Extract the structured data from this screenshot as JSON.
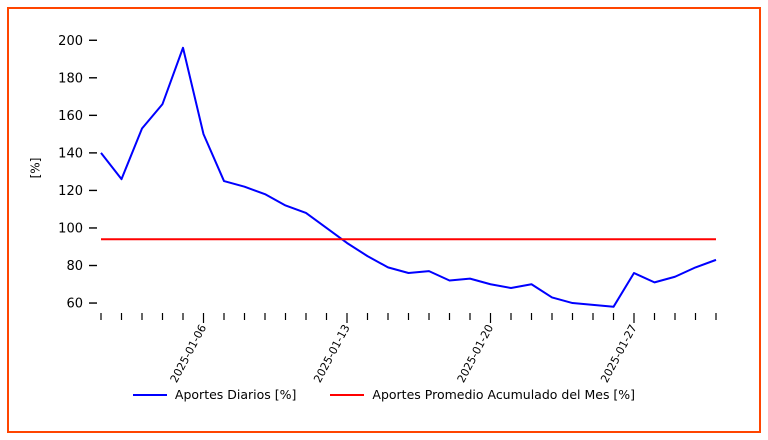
{
  "frame": {
    "border_color": "#ff4500",
    "background": "#ffffff"
  },
  "chart_data": {
    "type": "line",
    "title": "",
    "xlabel": "",
    "ylabel": "[%]",
    "ylim": [
      51.5,
      206
    ],
    "yticks": [
      60,
      80,
      100,
      120,
      140,
      160,
      180,
      200
    ],
    "xtick_labels": [
      "2025-01-06",
      "2025-01-13",
      "2025-01-20",
      "2025-01-27"
    ],
    "grid": false,
    "legend_position": "bottom",
    "x": [
      "2025-01-01",
      "2025-01-02",
      "2025-01-03",
      "2025-01-04",
      "2025-01-05",
      "2025-01-06",
      "2025-01-07",
      "2025-01-08",
      "2025-01-09",
      "2025-01-10",
      "2025-01-11",
      "2025-01-12",
      "2025-01-13",
      "2025-01-14",
      "2025-01-15",
      "2025-01-16",
      "2025-01-17",
      "2025-01-18",
      "2025-01-19",
      "2025-01-20",
      "2025-01-21",
      "2025-01-22",
      "2025-01-23",
      "2025-01-24",
      "2025-01-25",
      "2025-01-26",
      "2025-01-27",
      "2025-01-28",
      "2025-01-29",
      "2025-01-30",
      "2025-01-31"
    ],
    "series": [
      {
        "name": "Aportes Diarios [%]",
        "color": "#0000ff",
        "values": [
          140,
          126,
          153,
          166,
          196,
          150,
          125,
          122,
          118,
          112,
          108,
          100,
          92,
          85,
          79,
          76,
          77,
          72,
          73,
          70,
          68,
          70,
          63,
          60,
          59,
          58,
          76,
          71,
          74,
          79,
          83
        ]
      },
      {
        "name": "Aportes Promedio Acumulado del Mes [%]",
        "color": "#ff0000",
        "constant": 94
      }
    ]
  }
}
